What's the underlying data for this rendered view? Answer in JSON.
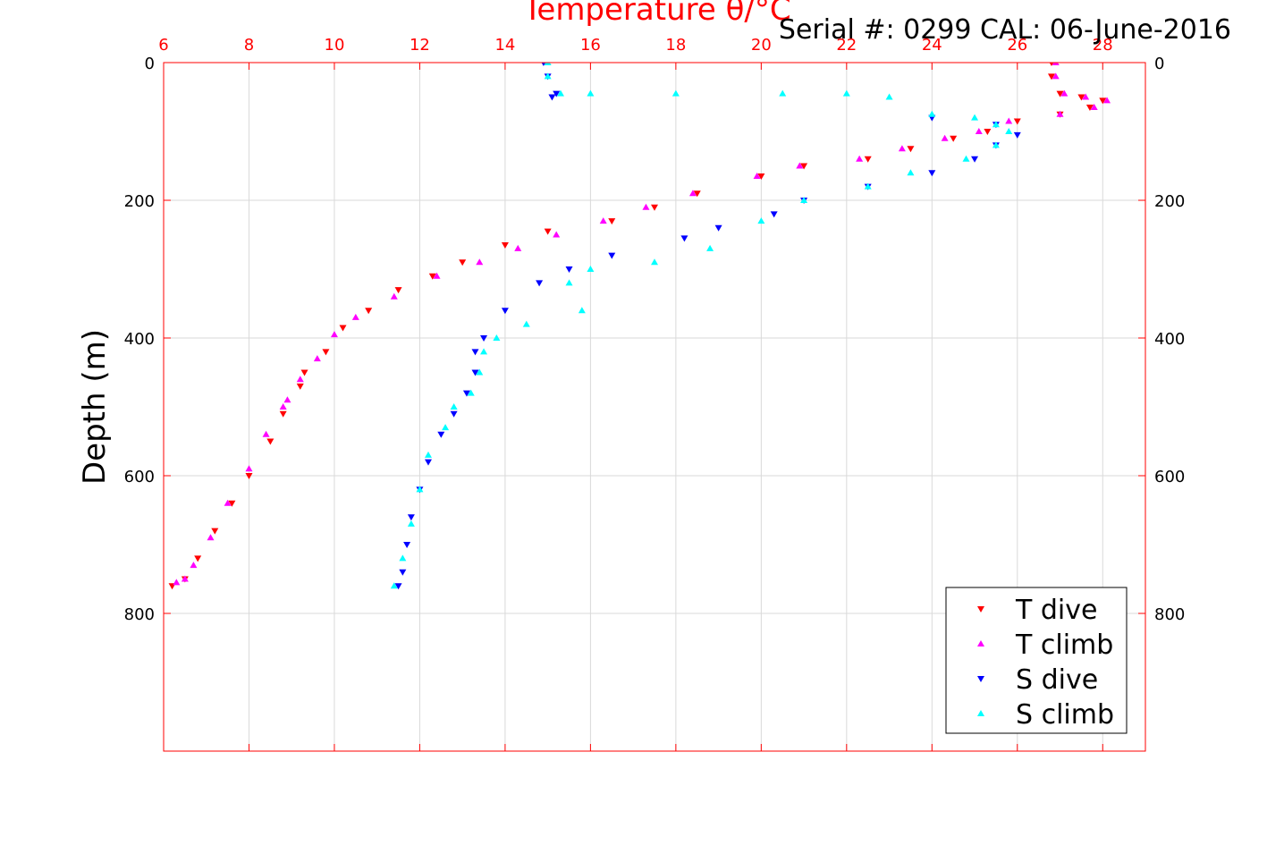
{
  "chart_data": {
    "type": "scatter",
    "title": "",
    "subtitle": "Serial #: 0299 CAL: 06-June-2016",
    "xlabel": "Temperature θ/°C",
    "ylabel": "Depth (m)",
    "xlim": [
      6,
      29
    ],
    "ylim": [
      0,
      1000
    ],
    "y_reversed": true,
    "x_ticks": [
      "6",
      "8",
      "10",
      "12",
      "14",
      "16",
      "18",
      "20",
      "22",
      "24",
      "26",
      "28"
    ],
    "y_ticks": [
      "0",
      "200",
      "400",
      "600",
      "800"
    ],
    "grid": true,
    "legend_position": "bottom-right",
    "colors": {
      "axis": "#ff0000",
      "grid": "#d9d9d9"
    },
    "series": [
      {
        "name": "T dive",
        "color": "#ff0000",
        "marker": "triangle-down",
        "x": [
          26.8,
          26.8,
          27.0,
          27.5,
          28.0,
          27.7,
          27.0,
          26.0,
          25.3,
          24.5,
          23.5,
          22.5,
          21.0,
          20.0,
          18.5,
          17.5,
          16.5,
          15.0,
          14.0,
          13.0,
          12.3,
          11.5,
          10.8,
          10.2,
          9.8,
          9.3,
          9.2,
          8.8,
          8.5,
          8.0,
          7.6,
          7.2,
          6.8,
          6.5,
          6.2
        ],
        "y": [
          0,
          20,
          45,
          50,
          55,
          65,
          75,
          85,
          100,
          110,
          125,
          140,
          150,
          165,
          190,
          210,
          230,
          245,
          265,
          290,
          310,
          330,
          360,
          385,
          420,
          450,
          470,
          510,
          550,
          600,
          640,
          680,
          720,
          750,
          760
        ]
      },
      {
        "name": "T climb",
        "color": "#ff00ff",
        "marker": "triangle-up",
        "x": [
          26.9,
          26.9,
          27.1,
          27.6,
          28.1,
          27.8,
          27.0,
          25.8,
          25.1,
          24.3,
          23.3,
          22.3,
          20.9,
          19.9,
          18.4,
          17.3,
          16.3,
          15.2,
          14.3,
          13.4,
          12.4,
          11.4,
          10.5,
          10.0,
          9.6,
          9.2,
          8.8,
          8.9,
          8.4,
          8.0,
          7.5,
          7.1,
          6.7,
          6.5,
          6.3
        ],
        "y": [
          0,
          20,
          45,
          50,
          55,
          65,
          75,
          85,
          100,
          110,
          125,
          140,
          150,
          165,
          190,
          210,
          230,
          250,
          270,
          290,
          310,
          340,
          370,
          395,
          430,
          460,
          500,
          490,
          540,
          590,
          640,
          690,
          730,
          750,
          755
        ]
      },
      {
        "name": "S dive",
        "color": "#0000ff",
        "marker": "triangle-down",
        "x": [
          14.9,
          15.0,
          15.2,
          15.1,
          24.0,
          25.5,
          26.0,
          25.5,
          25.0,
          24.0,
          22.5,
          21.0,
          20.3,
          19.0,
          18.2,
          16.5,
          15.5,
          14.8,
          14.0,
          13.5,
          13.3,
          13.3,
          13.1,
          12.8,
          12.5,
          12.2,
          12.0,
          11.8,
          11.7,
          11.6,
          11.5
        ],
        "y": [
          0,
          20,
          45,
          50,
          80,
          90,
          105,
          120,
          140,
          160,
          180,
          200,
          220,
          240,
          255,
          280,
          300,
          320,
          360,
          400,
          420,
          450,
          480,
          510,
          540,
          580,
          620,
          660,
          700,
          740,
          760
        ]
      },
      {
        "name": "S climb",
        "color": "#00ffff",
        "marker": "triangle-up",
        "x": [
          15.0,
          15.0,
          15.3,
          16.0,
          18.0,
          20.5,
          22.0,
          23.0,
          24.0,
          25.0,
          25.5,
          25.8,
          25.5,
          24.8,
          23.5,
          22.5,
          21.0,
          20.0,
          18.8,
          17.5,
          16.0,
          15.5,
          15.8,
          14.5,
          13.8,
          13.5,
          13.4,
          13.2,
          12.8,
          12.6,
          12.2,
          12.0,
          11.8,
          11.6,
          11.4
        ],
        "y": [
          0,
          20,
          45,
          45,
          45,
          45,
          45,
          50,
          75,
          80,
          90,
          100,
          120,
          140,
          160,
          180,
          200,
          230,
          270,
          290,
          300,
          320,
          360,
          380,
          400,
          420,
          450,
          480,
          500,
          530,
          570,
          620,
          670,
          720,
          760
        ]
      }
    ]
  }
}
